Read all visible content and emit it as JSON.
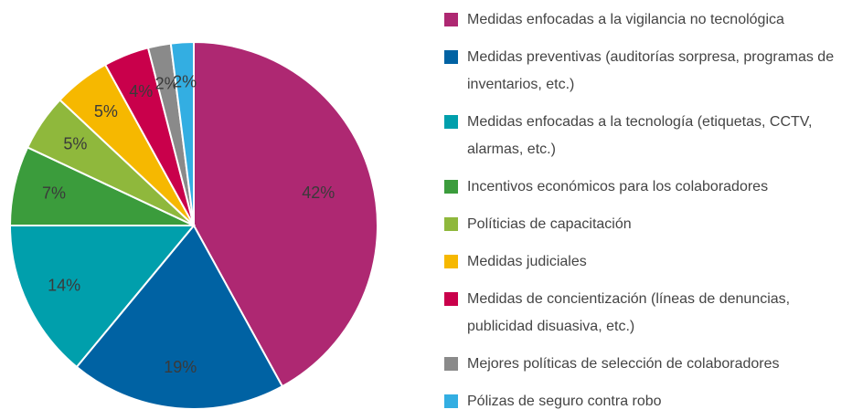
{
  "chart_data": {
    "type": "pie",
    "categories": [
      "Medidas enfocadas a la vigilancia no tecnológica",
      "Medidas preventivas (auditorías sorpresa, programas de inventarios, etc.)",
      "Medidas enfocadas a la tecnología (etiquetas, CCTV, alarmas, etc.)",
      "Incentivos económicos para los colaboradores",
      "Políticias de capacitación",
      "Medidas judiciales",
      "Medidas de concientización (líneas de denuncias, publicidad disuasiva, etc.)",
      "Mejores políticas de selección de colaboradores",
      "Pólizas de seguro contra robo"
    ],
    "values": [
      42,
      19,
      14,
      7,
      5,
      5,
      4,
      2,
      2
    ],
    "value_labels": [
      "42%",
      "19%",
      "14%",
      "7%",
      "5%",
      "5%",
      "4%",
      "2%",
      "2%"
    ],
    "colors": [
      "#ae2872",
      "#0062a3",
      "#009fac",
      "#3b9c3c",
      "#8fb83c",
      "#f6b800",
      "#c9004b",
      "#8a8a8a",
      "#33aee2"
    ]
  }
}
